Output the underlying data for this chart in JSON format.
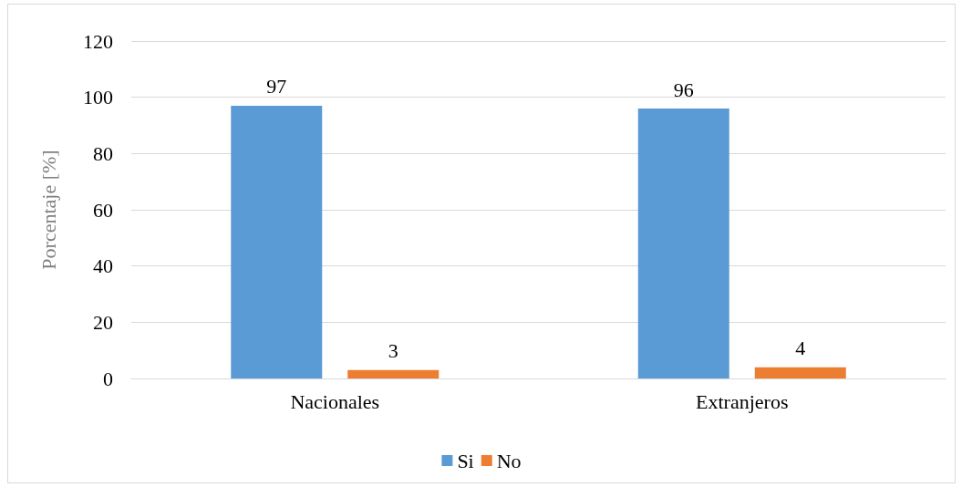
{
  "chart_data": {
    "type": "bar",
    "ylabel": "Porcentaje [%]",
    "categories": [
      "Nacionales",
      "Extranjeros"
    ],
    "series": [
      {
        "name": "Si",
        "color": "#5b9bd5",
        "values": [
          97,
          96
        ]
      },
      {
        "name": "No",
        "color": "#ed7d31",
        "values": [
          3,
          4
        ]
      }
    ],
    "ylim": [
      0,
      120
    ],
    "yticks": [
      0,
      20,
      40,
      60,
      80,
      100,
      120
    ],
    "grid": "y",
    "legend": "bottom",
    "data_labels": true
  }
}
